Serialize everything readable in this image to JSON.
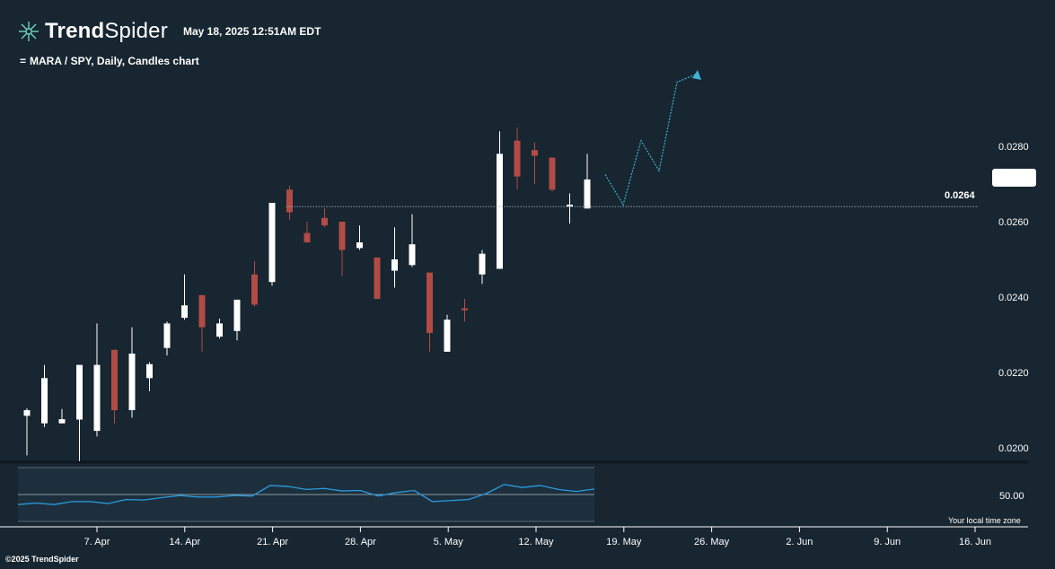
{
  "header": {
    "brand_bold": "Trend",
    "brand_light": "Spider",
    "timestamp": "May 18, 2025 12:51AM EDT",
    "chart_title": "MARA / SPY, Daily, Candles chart",
    "menu_icon": "equals-icon"
  },
  "footer": {
    "copyright": "©2025 TrendSpider"
  },
  "oscillator": {
    "level_label": "50.00",
    "timezone_note": "Your local time zone"
  },
  "colors": {
    "background": "#172631",
    "bullish": "#ffffff",
    "bearish": "#b24b45",
    "projection": "#3fb3d6",
    "oscillator_line": "#2a9be0",
    "oscillator_bg": "#1d2f3c",
    "logo": "#6fd3c0"
  },
  "chart_data": {
    "type": "candlestick",
    "title": "MARA / SPY, Daily, Candles chart",
    "y_ticks": [
      "0.0280",
      "0.0260",
      "0.0240",
      "0.0220",
      "0.0200"
    ],
    "ylim": [
      0.0196,
      0.0308
    ],
    "x_ticks": [
      "7. Apr",
      "14. Apr",
      "21. Apr",
      "28. Apr",
      "5. May",
      "12. May",
      "19. May",
      "26. May",
      "2. Jun",
      "9. Jun",
      "16. Jun"
    ],
    "price_line": {
      "value": 0.0264,
      "label": "0.0264"
    },
    "candles": [
      {
        "d": "Apr 1",
        "o": 0.02085,
        "h": 0.02105,
        "l": 0.0198,
        "c": 0.021
      },
      {
        "d": "Apr 2",
        "o": 0.02065,
        "h": 0.0222,
        "l": 0.02055,
        "c": 0.02185
      },
      {
        "d": "Apr 3",
        "o": 0.02065,
        "h": 0.02103,
        "l": 0.02065,
        "c": 0.02076
      },
      {
        "d": "Apr 4",
        "o": 0.02075,
        "h": 0.0222,
        "l": 0.01965,
        "c": 0.0222
      },
      {
        "d": "Apr 7",
        "o": 0.02045,
        "h": 0.0233,
        "l": 0.0203,
        "c": 0.0222
      },
      {
        "d": "Apr 8",
        "o": 0.0226,
        "h": 0.0226,
        "l": 0.02065,
        "c": 0.021
      },
      {
        "d": "Apr 9",
        "o": 0.021,
        "h": 0.0232,
        "l": 0.0208,
        "c": 0.0225
      },
      {
        "d": "Apr 10",
        "o": 0.02185,
        "h": 0.02227,
        "l": 0.0215,
        "c": 0.02222
      },
      {
        "d": "Apr 11",
        "o": 0.02265,
        "h": 0.02335,
        "l": 0.02245,
        "c": 0.0233
      },
      {
        "d": "Apr 14",
        "o": 0.02345,
        "h": 0.0246,
        "l": 0.0234,
        "c": 0.02378
      },
      {
        "d": "Apr 15",
        "o": 0.02405,
        "h": 0.02405,
        "l": 0.02255,
        "c": 0.0232
      },
      {
        "d": "Apr 16",
        "o": 0.02295,
        "h": 0.02343,
        "l": 0.0229,
        "c": 0.0233
      },
      {
        "d": "Apr 17",
        "o": 0.0231,
        "h": 0.02393,
        "l": 0.02285,
        "c": 0.02393
      },
      {
        "d": "Apr 21",
        "o": 0.0246,
        "h": 0.02495,
        "l": 0.02375,
        "c": 0.0238
      },
      {
        "d": "Apr 22",
        "o": 0.0244,
        "h": 0.0265,
        "l": 0.0243,
        "c": 0.0265
      },
      {
        "d": "Apr 23",
        "o": 0.02685,
        "h": 0.02695,
        "l": 0.02605,
        "c": 0.02625
      },
      {
        "d": "Apr 24",
        "o": 0.0257,
        "h": 0.026,
        "l": 0.02545,
        "c": 0.02545
      },
      {
        "d": "Apr 25",
        "o": 0.0261,
        "h": 0.02635,
        "l": 0.02585,
        "c": 0.0259
      },
      {
        "d": "Apr 28",
        "o": 0.026,
        "h": 0.026,
        "l": 0.02455,
        "c": 0.02525
      },
      {
        "d": "Apr 29",
        "o": 0.0253,
        "h": 0.0259,
        "l": 0.02525,
        "c": 0.02545
      },
      {
        "d": "Apr 30",
        "o": 0.02505,
        "h": 0.02505,
        "l": 0.02395,
        "c": 0.02395
      },
      {
        "d": "May 1",
        "o": 0.0247,
        "h": 0.02585,
        "l": 0.02425,
        "c": 0.025
      },
      {
        "d": "May 2",
        "o": 0.02485,
        "h": 0.0262,
        "l": 0.0248,
        "c": 0.0254
      },
      {
        "d": "May 5",
        "o": 0.02465,
        "h": 0.02465,
        "l": 0.02255,
        "c": 0.02305
      },
      {
        "d": "May 6",
        "o": 0.02255,
        "h": 0.02353,
        "l": 0.02255,
        "c": 0.0234
      },
      {
        "d": "May 7",
        "o": 0.0237,
        "h": 0.02395,
        "l": 0.02335,
        "c": 0.02365
      },
      {
        "d": "May 8",
        "o": 0.0246,
        "h": 0.02525,
        "l": 0.02435,
        "c": 0.02515
      },
      {
        "d": "May 9",
        "o": 0.02475,
        "h": 0.0284,
        "l": 0.02475,
        "c": 0.0278
      },
      {
        "d": "May 12",
        "o": 0.02815,
        "h": 0.0285,
        "l": 0.02685,
        "c": 0.0272
      },
      {
        "d": "May 13",
        "o": 0.0279,
        "h": 0.0281,
        "l": 0.027,
        "c": 0.02775
      },
      {
        "d": "May 14",
        "o": 0.0277,
        "h": 0.0277,
        "l": 0.0268,
        "c": 0.02685
      },
      {
        "d": "May 15",
        "o": 0.0264,
        "h": 0.02675,
        "l": 0.02595,
        "c": 0.02645
      },
      {
        "d": "May 16",
        "o": 0.02635,
        "h": 0.0278,
        "l": 0.02635,
        "c": 0.02712
      }
    ],
    "projection": [
      0.02725,
      0.02645,
      0.02815,
      0.02735,
      0.0297
    ],
    "oscillator": [
      30,
      33,
      30,
      36,
      36,
      32,
      40,
      39,
      44,
      48,
      45,
      45,
      48,
      47,
      68,
      66,
      60,
      62,
      57,
      58,
      47,
      54,
      58,
      36,
      38,
      40,
      52,
      70,
      64,
      68,
      60,
      56,
      61
    ],
    "oscillator_ylim": [
      0,
      100
    ]
  }
}
